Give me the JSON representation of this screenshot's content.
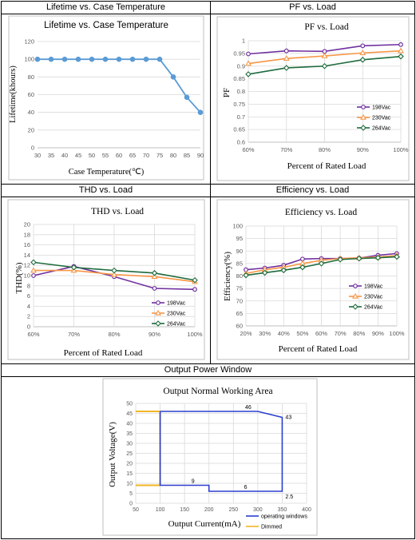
{
  "cells": {
    "lifetime": "Lifetime vs. Case Temperature",
    "pf": "PF vs. Load",
    "thd": "THD vs. Load",
    "eff": "Efficiency vs. Load",
    "opw": "Output Power Window"
  },
  "chart_data": [
    {
      "id": "lifetime",
      "type": "line",
      "title": "Lifetime vs. Case Temperature",
      "xlabel": "Case Temperature(℃)",
      "ylabel": "Lifetime(khours)",
      "x": [
        30,
        35,
        40,
        45,
        50,
        55,
        60,
        65,
        70,
        75,
        80,
        85,
        90
      ],
      "xlim": [
        30,
        90
      ],
      "ylim": [
        0,
        120
      ],
      "yticks": [
        0,
        20,
        40,
        60,
        80,
        100,
        120
      ],
      "series": [
        {
          "color": "#5b9bd5",
          "values": [
            100,
            100,
            100,
            100,
            100,
            100,
            100,
            100,
            100,
            100,
            80,
            57,
            40
          ]
        }
      ],
      "grid": true
    },
    {
      "id": "pf",
      "type": "line",
      "title": "PF vs. Load",
      "xlabel": "Percent of Rated Load",
      "ylabel": "PF",
      "categories": [
        "60%",
        "70%",
        "80%",
        "90%",
        "100%"
      ],
      "ylim": [
        0.6,
        1
      ],
      "yticks": [
        "0.6",
        "0.65",
        "0.7",
        "0.75",
        "0.8",
        "0.85",
        "0.9",
        "0.95",
        "1"
      ],
      "legend": "right",
      "series": [
        {
          "name": "198Vac",
          "color": "#7030a0",
          "marker": "circle",
          "values": [
            0.948,
            0.96,
            0.958,
            0.98,
            0.985
          ]
        },
        {
          "name": "230Vac",
          "color": "#f79646",
          "marker": "triangle",
          "values": [
            0.91,
            0.93,
            0.94,
            0.952,
            0.96
          ]
        },
        {
          "name": "264Vac",
          "color": "#1e6b3c",
          "marker": "diamond",
          "values": [
            0.868,
            0.893,
            0.9,
            0.925,
            0.938
          ]
        }
      ],
      "grid": true
    },
    {
      "id": "thd",
      "type": "line",
      "title": "THD vs. Load",
      "xlabel": "Percent of Rated Load",
      "ylabel": "THD(%)",
      "categories": [
        "60%",
        "70%",
        "80%",
        "90%",
        "100%"
      ],
      "ylim": [
        0,
        20
      ],
      "yticks": [
        0,
        2,
        4,
        6,
        8,
        10,
        12,
        14,
        16,
        18,
        20
      ],
      "legend": "right",
      "series": [
        {
          "name": "198Vac",
          "color": "#7030a0",
          "marker": "circle",
          "values": [
            10,
            11.8,
            9.8,
            7.5,
            7.3
          ]
        },
        {
          "name": "230Vac",
          "color": "#f79646",
          "marker": "triangle",
          "values": [
            11,
            11,
            10.2,
            9.8,
            8.8
          ]
        },
        {
          "name": "264Vac",
          "color": "#1e6b3c",
          "marker": "diamond",
          "values": [
            12.6,
            11.6,
            11,
            10.5,
            9.1
          ]
        }
      ],
      "grid": true
    },
    {
      "id": "eff",
      "type": "line",
      "title": "Efficiency vs. Load",
      "xlabel": "Percent of Rated Load",
      "ylabel": "Efficiency(%)",
      "categories": [
        "20%",
        "30%",
        "40%",
        "50%",
        "60%",
        "70%",
        "80%",
        "90%",
        "100%"
      ],
      "ylim": [
        60,
        100
      ],
      "yticks": [
        60,
        65,
        70,
        75,
        80,
        85,
        90,
        95,
        100
      ],
      "legend": "right",
      "series": [
        {
          "name": "198Vac",
          "color": "#7030a0",
          "marker": "circle",
          "values": [
            82.5,
            83.2,
            84.3,
            86.8,
            87,
            87,
            87.2,
            88.3,
            89
          ]
        },
        {
          "name": "230Vac",
          "color": "#f79646",
          "marker": "triangle",
          "values": [
            81,
            82.5,
            83.5,
            85,
            86.3,
            87,
            87.3,
            87.6,
            88.2
          ]
        },
        {
          "name": "264Vac",
          "color": "#1e6b3c",
          "marker": "diamond",
          "values": [
            80.3,
            81.3,
            82.3,
            83.5,
            85,
            86.6,
            87,
            87.3,
            87.7
          ]
        }
      ],
      "grid": true
    },
    {
      "id": "opw",
      "type": "line",
      "title": "Output Normal Working Area",
      "xlabel": "Output Current(mA)",
      "ylabel": "Output Voltage(V)",
      "xlim": [
        50,
        400
      ],
      "xticks": [
        50,
        100,
        150,
        200,
        250,
        300,
        350,
        400
      ],
      "ylim": [
        0,
        50
      ],
      "yticks": [
        0,
        5,
        10,
        15,
        20,
        25,
        30,
        35,
        40,
        45,
        50
      ],
      "legend": "bottom-right",
      "series": [
        {
          "name": "operating windows",
          "color": "#2b3fcf",
          "points": [
            [
              100,
              46
            ],
            [
              300,
              46
            ],
            [
              350,
              43
            ],
            [
              350,
              6
            ],
            [
              200,
              6
            ],
            [
              200,
              9
            ],
            [
              100,
              9
            ],
            [
              100,
              46
            ]
          ]
        },
        {
          "name": "Dimmed",
          "color": "#f2b526",
          "segments": [
            [
              [
                50,
                46
              ],
              [
                100,
                46
              ]
            ],
            [
              [
                100,
                46
              ],
              [
                100,
                9
              ]
            ],
            [
              [
                50,
                9
              ],
              [
                100,
                9
              ]
            ]
          ]
        }
      ],
      "annotations": [
        {
          "text": "46",
          "x": 300,
          "y": 46
        },
        {
          "text": "43",
          "x": 350,
          "y": 43
        },
        {
          "text": "9",
          "x": 200,
          "y": 9
        },
        {
          "text": "6",
          "x": 275,
          "y": 6
        },
        {
          "text": "2.5",
          "x": 350,
          "y": 2.5
        }
      ],
      "grid": true
    }
  ]
}
